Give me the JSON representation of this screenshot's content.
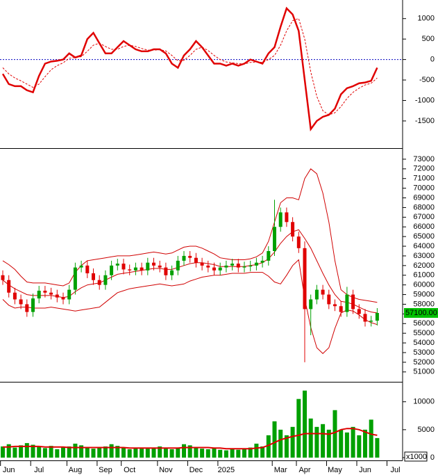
{
  "chart_data": [
    {
      "type": "line",
      "zero_line": true,
      "ylim": [
        -2130,
        1420
      ],
      "yticks": [
        -1500,
        -1000,
        -500,
        0,
        500,
        1000
      ],
      "series": [
        {
          "color": "#e00000",
          "style": "solid",
          "values": [
            -350,
            -600,
            -650,
            -650,
            -750,
            -800,
            -400,
            -100,
            -50,
            -30,
            0,
            150,
            50,
            100,
            500,
            650,
            400,
            150,
            150,
            300,
            450,
            350,
            250,
            200,
            200,
            250,
            250,
            150,
            -100,
            -200,
            100,
            250,
            450,
            300,
            100,
            -100,
            -100,
            -150,
            -100,
            -150,
            -100,
            0,
            -50,
            -100,
            150,
            300,
            800,
            1250,
            1100,
            700,
            -500,
            -1700,
            -1500,
            -1400,
            -1350,
            -1200,
            -850,
            -700,
            -650,
            -580,
            -560,
            -520,
            -200,
            null,
            null,
            null
          ]
        },
        {
          "color": "#e00000",
          "style": "dashed",
          "values": [
            -200,
            -350,
            -450,
            -520,
            -600,
            -680,
            -600,
            -420,
            -250,
            -150,
            -80,
            30,
            50,
            70,
            200,
            350,
            400,
            320,
            250,
            250,
            320,
            350,
            320,
            270,
            230,
            230,
            240,
            210,
            100,
            -30,
            -20,
            100,
            250,
            300,
            220,
            100,
            0,
            -60,
            -80,
            -100,
            -110,
            -70,
            -60,
            -70,
            0,
            100,
            350,
            700,
            950,
            1000,
            500,
            -300,
            -900,
            -1250,
            -1350,
            -1300,
            -1150,
            -950,
            -800,
            -700,
            -620,
            -580,
            -450,
            null,
            null,
            null
          ]
        }
      ]
    },
    {
      "type": "candlestick",
      "up_color": "#00a000",
      "down_color": "#e00000",
      "band_color": "#d00000",
      "ylim": [
        50050,
        74000
      ],
      "yticks": [
        51000,
        52000,
        53000,
        54000,
        55000,
        56000,
        57000,
        58000,
        59000,
        60000,
        61000,
        62000,
        63000,
        64000,
        65000,
        66000,
        67000,
        68000,
        69000,
        70000,
        71000,
        72000,
        73000
      ],
      "last_price": {
        "value": 57100,
        "label": "57100.00"
      },
      "open": [
        61000,
        60500,
        59200,
        58500,
        58000,
        57200,
        58600,
        59400,
        59200,
        59000,
        58700,
        58500,
        59500,
        61800,
        62000,
        61200,
        60500,
        60000,
        61000,
        62000,
        62200,
        61600,
        61500,
        61800,
        61500,
        62300,
        62000,
        61800,
        61000,
        61500,
        62500,
        63000,
        62800,
        62300,
        62000,
        61800,
        61500,
        61800,
        62000,
        62200,
        61800,
        61900,
        62000,
        62300,
        62500,
        63500,
        66000,
        67500,
        66500,
        65000,
        63800,
        57500,
        58500,
        59500,
        59000,
        58000,
        57800,
        57200,
        59000,
        57500,
        57000,
        56200,
        56300,
        null,
        null,
        null
      ],
      "high": [
        61500,
        61000,
        59700,
        59000,
        58500,
        59100,
        59900,
        59900,
        59700,
        59500,
        59200,
        60000,
        62300,
        62500,
        62500,
        61700,
        61000,
        61500,
        62500,
        62700,
        62700,
        62100,
        62300,
        62300,
        62800,
        62800,
        62500,
        62300,
        62000,
        63000,
        63500,
        63500,
        63300,
        62800,
        62500,
        62300,
        62300,
        62500,
        62700,
        62700,
        62400,
        62500,
        62800,
        63000,
        64000,
        68800,
        68000,
        68000,
        67000,
        65500,
        64500,
        59000,
        60000,
        60000,
        59500,
        58500,
        58300,
        59800,
        59500,
        58000,
        57500,
        56800,
        57600,
        null,
        null,
        null
      ],
      "low": [
        60000,
        58700,
        58000,
        57500,
        56700,
        56700,
        58100,
        58700,
        58500,
        58200,
        58000,
        58000,
        59000,
        61300,
        60700,
        60000,
        59500,
        59500,
        60500,
        61500,
        61100,
        61000,
        61000,
        61000,
        61000,
        61500,
        61300,
        60500,
        60500,
        61000,
        62000,
        62300,
        61800,
        61500,
        61300,
        61000,
        61000,
        61300,
        61500,
        61300,
        61300,
        61400,
        61500,
        61800,
        62000,
        63000,
        65500,
        66000,
        64500,
        63300,
        52000,
        54800,
        58000,
        58500,
        57500,
        57300,
        56700,
        56700,
        57000,
        56500,
        55700,
        55700,
        55800,
        null,
        null,
        null
      ],
      "close": [
        60500,
        59200,
        58500,
        58000,
        57200,
        58600,
        59400,
        59200,
        59000,
        58700,
        58500,
        59500,
        61800,
        62000,
        61200,
        60500,
        60000,
        61000,
        62000,
        62200,
        61600,
        61500,
        61800,
        61500,
        62300,
        62000,
        61800,
        61000,
        61500,
        62500,
        63000,
        62800,
        62300,
        62000,
        61800,
        61500,
        61800,
        62000,
        62200,
        61800,
        61900,
        62000,
        62300,
        62500,
        63500,
        66000,
        67500,
        66500,
        65000,
        63800,
        57500,
        58500,
        59500,
        59000,
        58000,
        57800,
        57200,
        59000,
        57500,
        57000,
        56200,
        56300,
        57100,
        null,
        null,
        null
      ],
      "upper": [
        62500,
        62100,
        61600,
        60900,
        60300,
        60200,
        60200,
        60200,
        60100,
        60000,
        59900,
        60200,
        61300,
        62000,
        62500,
        62600,
        62700,
        62800,
        62900,
        63000,
        63000,
        63000,
        63100,
        63200,
        63300,
        63400,
        63300,
        63200,
        63300,
        63600,
        63900,
        64000,
        64000,
        63800,
        63500,
        63200,
        62800,
        62700,
        62600,
        62600,
        62600,
        62700,
        62900,
        63300,
        64500,
        66500,
        68500,
        69000,
        69000,
        68800,
        71000,
        72000,
        71500,
        69500,
        66500,
        62500,
        59500,
        59000,
        58700,
        58500,
        58400,
        58300,
        58200,
        null,
        null,
        null
      ],
      "mid": [
        60500,
        60000,
        59600,
        59300,
        59000,
        58900,
        58900,
        58900,
        58900,
        58800,
        58700,
        58800,
        59300,
        59700,
        60000,
        60100,
        60200,
        60500,
        60800,
        61100,
        61200,
        61300,
        61400,
        61500,
        61600,
        61700,
        61700,
        61600,
        61600,
        61800,
        62000,
        62200,
        62300,
        62300,
        62200,
        62100,
        61900,
        61900,
        61900,
        61900,
        61900,
        62000,
        62100,
        62300,
        62700,
        63400,
        64300,
        65000,
        65500,
        65700,
        64800,
        63800,
        62500,
        61200,
        60000,
        59000,
        58300,
        58200,
        58000,
        57700,
        57400,
        57200,
        57100,
        null,
        null,
        null
      ],
      "lower": [
        58500,
        57900,
        57600,
        57700,
        57700,
        57600,
        57600,
        57600,
        57700,
        57600,
        57500,
        57400,
        57300,
        57400,
        57500,
        57600,
        57700,
        58200,
        58700,
        59200,
        59400,
        59600,
        59700,
        59800,
        59900,
        60000,
        60100,
        60000,
        59900,
        60000,
        60100,
        60400,
        60600,
        60800,
        60900,
        61000,
        61000,
        61100,
        61200,
        61200,
        61200,
        61300,
        61300,
        61300,
        60900,
        60300,
        60100,
        61000,
        62000,
        62600,
        58600,
        55600,
        53500,
        52900,
        53500,
        55500,
        57100,
        57400,
        57300,
        56900,
        56400,
        56100,
        55900,
        null,
        null,
        null
      ]
    },
    {
      "type": "bar",
      "color": "#00a000",
      "unit_label": "x1000",
      "ylim": [
        0,
        13200
      ],
      "yticks": [
        0,
        5000,
        10000
      ],
      "categories": [
        null,
        "Jun",
        null,
        null,
        null,
        null,
        "Jul",
        null,
        null,
        null,
        null,
        null,
        "Aug",
        null,
        null,
        null,
        null,
        "Sep",
        null,
        null,
        null,
        "Oct",
        null,
        null,
        null,
        null,
        null,
        "Nov",
        null,
        null,
        null,
        null,
        "Dec",
        null,
        null,
        null,
        null,
        "2025",
        null,
        null,
        null,
        null,
        null,
        null,
        null,
        null,
        "Mar",
        null,
        null,
        null,
        "Apr",
        null,
        null,
        null,
        null,
        "May",
        null,
        null,
        null,
        null,
        "Jun",
        null,
        null,
        null,
        null,
        "Jul"
      ],
      "values": [
        2000,
        2400,
        1800,
        2200,
        2600,
        2300,
        1900,
        1700,
        2100,
        1500,
        1800,
        2000,
        2500,
        2200,
        1900,
        1600,
        1700,
        2000,
        2400,
        2100,
        1800,
        1500,
        1700,
        1600,
        1600,
        1800,
        2000,
        1700,
        1500,
        1800,
        2400,
        2200,
        1800,
        1600,
        1500,
        1700,
        1400,
        1300,
        1500,
        1400,
        1600,
        1800,
        2500,
        2000,
        4000,
        6500,
        5000,
        4000,
        5500,
        10500,
        12000,
        7000,
        5500,
        6000,
        5000,
        8500,
        5000,
        4500,
        5500,
        4000,
        5000,
        6800,
        3500,
        null,
        null,
        null
      ],
      "ma": {
        "color": "#e00000",
        "values": [
          1900,
          1900,
          2000,
          2000,
          2000,
          2000,
          2000,
          1900,
          1900,
          1900,
          1900,
          1800,
          1800,
          1800,
          1800,
          1800,
          1800,
          1800,
          1800,
          1800,
          1800,
          1700,
          1700,
          1700,
          1700,
          1700,
          1700,
          1700,
          1700,
          1700,
          1800,
          1800,
          1800,
          1800,
          1800,
          1700,
          1700,
          1600,
          1600,
          1600,
          1600,
          1600,
          1700,
          1800,
          2200,
          2700,
          3200,
          3500,
          3800,
          4000,
          4300,
          4300,
          4300,
          4300,
          4200,
          4500,
          5000,
          5200,
          5200,
          5000,
          4600,
          4200,
          4000,
          null,
          null,
          null
        ]
      }
    }
  ]
}
